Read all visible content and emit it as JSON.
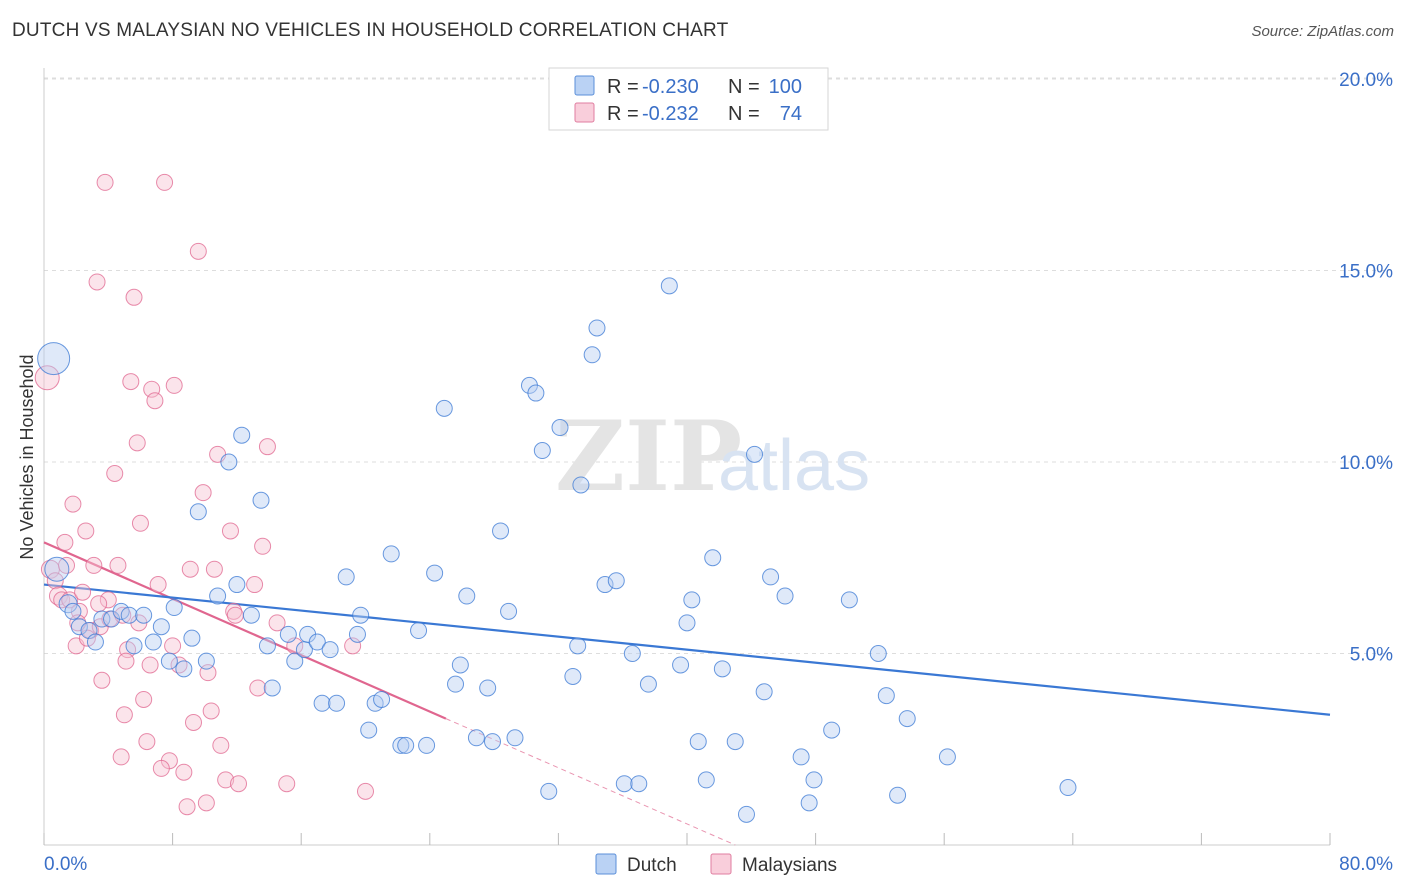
{
  "header": {
    "title": "DUTCH VS MALAYSIAN NO VEHICLES IN HOUSEHOLD CORRELATION CHART",
    "source": "Source: ZipAtlas.com"
  },
  "watermark": {
    "part1": "ZIP",
    "part2": "atlas"
  },
  "legend_box": {
    "rows": [
      {
        "r_label": "R =",
        "r_value": "-0.230",
        "n_label": "N =",
        "n_value": "100",
        "color": "#9dbff0",
        "stroke": "#5b8fd9"
      },
      {
        "r_label": "R =",
        "r_value": "-0.232",
        "n_label": "N =",
        "n_value": "74",
        "color": "#f7b9cc",
        "stroke": "#e07ea0"
      }
    ]
  },
  "bottom_legend": {
    "dutch": "Dutch",
    "malaysians": "Malaysians"
  },
  "chart_data": {
    "type": "scatter",
    "title": "DUTCH VS MALAYSIAN NO VEHICLES IN HOUSEHOLD CORRELATION CHART",
    "xlabel": "",
    "ylabel": "No Vehicles in Household",
    "xlim": [
      0,
      80
    ],
    "ylim": [
      0,
      20
    ],
    "x_tick_labels": [
      "0.0%",
      "80.0%"
    ],
    "y_ticks": [
      5,
      10,
      15,
      20
    ],
    "y_tick_labels": [
      "5.0%",
      "10.0%",
      "15.0%",
      "20.0%"
    ],
    "colors": {
      "dutch": "#3a78d4",
      "dutch_fill": "#b7cff2",
      "malaysian": "#e0668f",
      "malaysian_fill": "#f7c3d3"
    },
    "series": [
      {
        "name": "Dutch",
        "trend": {
          "x": [
            0,
            80
          ],
          "y": [
            6.8,
            3.4
          ],
          "dashed_to": null
        },
        "points": [
          [
            0.6,
            12.7,
            16
          ],
          [
            0.8,
            7.2,
            12
          ],
          [
            1.5,
            6.3,
            9
          ],
          [
            1.8,
            6.1,
            8
          ],
          [
            2.2,
            5.7,
            8
          ],
          [
            2.8,
            5.6,
            8
          ],
          [
            3.2,
            5.3,
            8
          ],
          [
            3.6,
            5.9,
            8
          ],
          [
            4.2,
            5.9,
            8
          ],
          [
            4.8,
            6.1,
            8
          ],
          [
            5.3,
            6.0,
            8
          ],
          [
            5.6,
            5.2,
            8
          ],
          [
            6.2,
            6.0,
            8
          ],
          [
            6.8,
            5.3,
            8
          ],
          [
            7.3,
            5.7,
            8
          ],
          [
            7.8,
            4.8,
            8
          ],
          [
            8.1,
            6.2,
            8
          ],
          [
            8.7,
            4.6,
            8
          ],
          [
            9.2,
            5.4,
            8
          ],
          [
            9.6,
            8.7,
            8
          ],
          [
            10.1,
            4.8,
            8
          ],
          [
            10.8,
            6.5,
            8
          ],
          [
            11.5,
            10.0,
            8
          ],
          [
            12.0,
            6.8,
            8
          ],
          [
            12.3,
            10.7,
            8
          ],
          [
            12.9,
            6.0,
            8
          ],
          [
            13.5,
            9.0,
            8
          ],
          [
            13.9,
            5.2,
            8
          ],
          [
            14.2,
            4.1,
            8
          ],
          [
            15.2,
            5.5,
            8
          ],
          [
            15.6,
            4.8,
            8
          ],
          [
            16.2,
            5.1,
            8
          ],
          [
            16.4,
            5.5,
            8
          ],
          [
            17.0,
            5.3,
            8
          ],
          [
            17.3,
            3.7,
            8
          ],
          [
            17.8,
            5.1,
            8
          ],
          [
            18.2,
            3.7,
            8
          ],
          [
            18.8,
            7.0,
            8
          ],
          [
            19.5,
            5.5,
            8
          ],
          [
            19.7,
            6.0,
            8
          ],
          [
            20.2,
            3.0,
            8
          ],
          [
            20.6,
            3.7,
            8
          ],
          [
            21.0,
            3.8,
            8
          ],
          [
            21.6,
            7.6,
            8
          ],
          [
            22.2,
            2.6,
            8
          ],
          [
            22.5,
            2.6,
            8
          ],
          [
            23.3,
            5.6,
            8
          ],
          [
            23.8,
            2.6,
            8
          ],
          [
            24.3,
            7.1,
            8
          ],
          [
            24.9,
            11.4,
            8
          ],
          [
            25.6,
            4.2,
            8
          ],
          [
            25.9,
            4.7,
            8
          ],
          [
            26.3,
            6.5,
            8
          ],
          [
            26.9,
            2.8,
            8
          ],
          [
            27.6,
            4.1,
            8
          ],
          [
            27.9,
            2.7,
            8
          ],
          [
            28.4,
            8.2,
            8
          ],
          [
            28.9,
            6.1,
            8
          ],
          [
            29.3,
            2.8,
            8
          ],
          [
            30.2,
            12.0,
            8
          ],
          [
            30.6,
            11.8,
            8
          ],
          [
            31.0,
            10.3,
            8
          ],
          [
            31.4,
            1.4,
            8
          ],
          [
            32.1,
            10.9,
            8
          ],
          [
            32.9,
            4.4,
            8
          ],
          [
            33.2,
            5.2,
            8
          ],
          [
            33.4,
            9.4,
            8
          ],
          [
            34.1,
            12.8,
            8
          ],
          [
            34.4,
            13.5,
            8
          ],
          [
            34.9,
            6.8,
            8
          ],
          [
            35.6,
            6.9,
            8
          ],
          [
            36.1,
            1.6,
            8
          ],
          [
            36.6,
            5.0,
            8
          ],
          [
            37.0,
            1.6,
            8
          ],
          [
            37.6,
            4.2,
            8
          ],
          [
            38.9,
            14.6,
            8
          ],
          [
            39.6,
            4.7,
            8
          ],
          [
            40.0,
            5.8,
            8
          ],
          [
            40.3,
            6.4,
            8
          ],
          [
            40.7,
            2.7,
            8
          ],
          [
            41.2,
            1.7,
            8
          ],
          [
            41.6,
            7.5,
            8
          ],
          [
            42.2,
            4.6,
            8
          ],
          [
            43.0,
            2.7,
            8
          ],
          [
            43.7,
            0.8,
            8
          ],
          [
            44.2,
            10.2,
            8
          ],
          [
            44.8,
            4.0,
            8
          ],
          [
            45.2,
            7.0,
            8
          ],
          [
            46.1,
            6.5,
            8
          ],
          [
            47.1,
            2.3,
            8
          ],
          [
            47.6,
            1.1,
            8
          ],
          [
            47.9,
            1.7,
            8
          ],
          [
            49.0,
            3.0,
            8
          ],
          [
            50.1,
            6.4,
            8
          ],
          [
            51.9,
            5.0,
            8
          ],
          [
            52.4,
            3.9,
            8
          ],
          [
            53.1,
            1.3,
            8
          ],
          [
            53.7,
            3.3,
            8
          ],
          [
            56.2,
            2.3,
            8
          ],
          [
            63.7,
            1.5,
            8
          ]
        ]
      },
      {
        "name": "Malaysians",
        "trend": {
          "x": [
            0,
            25
          ],
          "y": [
            7.9,
            3.3
          ],
          "dashed_to": [
            43,
            0
          ]
        },
        "points": [
          [
            0.2,
            12.2,
            12
          ],
          [
            0.4,
            7.2,
            9
          ],
          [
            0.7,
            6.9,
            8
          ],
          [
            0.9,
            6.5,
            9
          ],
          [
            1.1,
            6.4,
            8
          ],
          [
            1.4,
            7.3,
            8
          ],
          [
            1.6,
            6.4,
            8
          ],
          [
            1.8,
            8.9,
            8
          ],
          [
            2.0,
            5.2,
            8
          ],
          [
            2.2,
            6.1,
            8
          ],
          [
            2.4,
            6.6,
            8
          ],
          [
            2.6,
            8.2,
            8
          ],
          [
            2.9,
            5.6,
            8
          ],
          [
            3.1,
            7.3,
            8
          ],
          [
            3.3,
            14.7,
            8
          ],
          [
            3.5,
            5.7,
            8
          ],
          [
            3.6,
            4.3,
            8
          ],
          [
            3.8,
            17.3,
            8
          ],
          [
            4.0,
            6.4,
            8
          ],
          [
            4.1,
            5.9,
            8
          ],
          [
            4.4,
            9.7,
            8
          ],
          [
            4.8,
            2.3,
            8
          ],
          [
            5.0,
            3.4,
            8
          ],
          [
            5.2,
            5.1,
            8
          ],
          [
            5.4,
            12.1,
            8
          ],
          [
            5.6,
            14.3,
            8
          ],
          [
            5.8,
            10.5,
            8
          ],
          [
            6.0,
            8.4,
            8
          ],
          [
            6.2,
            3.8,
            8
          ],
          [
            6.4,
            2.7,
            8
          ],
          [
            6.7,
            11.9,
            8
          ],
          [
            6.9,
            11.6,
            8
          ],
          [
            7.1,
            6.8,
            8
          ],
          [
            7.5,
            17.3,
            8
          ],
          [
            7.8,
            2.2,
            8
          ],
          [
            8.1,
            12.0,
            8
          ],
          [
            8.4,
            4.7,
            8
          ],
          [
            8.7,
            1.9,
            8
          ],
          [
            8.9,
            1.0,
            8
          ],
          [
            9.1,
            7.2,
            8
          ],
          [
            9.6,
            15.5,
            8
          ],
          [
            9.9,
            9.2,
            8
          ],
          [
            10.1,
            1.1,
            8
          ],
          [
            10.4,
            3.5,
            8
          ],
          [
            10.6,
            7.2,
            8
          ],
          [
            10.8,
            10.2,
            8
          ],
          [
            11.0,
            2.6,
            8
          ],
          [
            11.3,
            1.7,
            8
          ],
          [
            11.6,
            8.2,
            8
          ],
          [
            11.8,
            6.1,
            8
          ],
          [
            12.1,
            1.6,
            8
          ],
          [
            13.1,
            6.8,
            8
          ],
          [
            13.6,
            7.8,
            8
          ],
          [
            13.9,
            10.4,
            8
          ],
          [
            14.5,
            5.8,
            8
          ],
          [
            15.1,
            1.6,
            8
          ],
          [
            15.6,
            5.2,
            8
          ],
          [
            1.3,
            7.9,
            8
          ],
          [
            2.1,
            5.8,
            8
          ],
          [
            2.7,
            5.4,
            8
          ],
          [
            3.4,
            6.3,
            8
          ],
          [
            4.6,
            7.3,
            8
          ],
          [
            5.1,
            4.8,
            8
          ],
          [
            5.9,
            5.8,
            8
          ],
          [
            6.6,
            4.7,
            8
          ],
          [
            7.3,
            2.0,
            8
          ],
          [
            8.0,
            5.2,
            8
          ],
          [
            9.3,
            3.2,
            8
          ],
          [
            10.2,
            4.5,
            8
          ],
          [
            11.9,
            6.0,
            8
          ],
          [
            13.3,
            4.1,
            8
          ],
          [
            20.0,
            1.4,
            8
          ],
          [
            19.2,
            5.2,
            8
          ],
          [
            4.9,
            6.0,
            8
          ]
        ]
      }
    ]
  }
}
